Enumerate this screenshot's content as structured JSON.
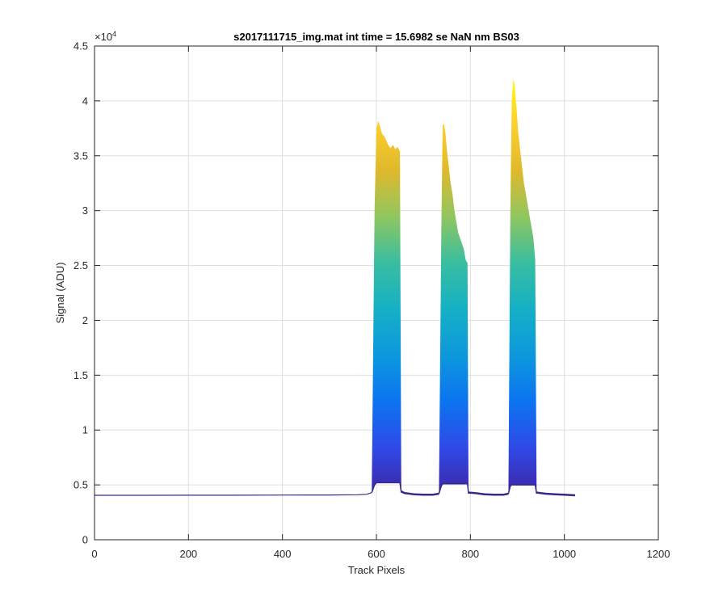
{
  "chart_data": {
    "type": "area",
    "title": "s2017111715_img.mat int time = 15.6982 se  NaN nm BS03",
    "xlabel": "Track Pixels",
    "ylabel": "Signal (ADU)",
    "xlim": [
      0,
      1200
    ],
    "ylim": [
      0,
      45000
    ],
    "x_ticks": [
      0,
      200,
      400,
      600,
      800,
      1000,
      1200
    ],
    "x_tick_labels": [
      "0",
      "200",
      "400",
      "600",
      "800",
      "1000",
      "1200"
    ],
    "y_ticks": [
      0,
      5000,
      10000,
      15000,
      20000,
      25000,
      30000,
      35000,
      40000,
      45000
    ],
    "y_tick_labels": [
      "0",
      "0.5",
      "1",
      "1.5",
      "2",
      "2.5",
      "3",
      "3.5",
      "4",
      "4.5"
    ],
    "y_exponent_label": "×10",
    "y_exponent_power": "4",
    "grid": true,
    "colormap": [
      "#3e26a8",
      "#2f4ae7",
      "#0b74f0",
      "#0d98dc",
      "#15b0c6",
      "#38bea0",
      "#90c660",
      "#dfb92c",
      "#fcce2e",
      "#f9fb15"
    ],
    "baseline": 4050,
    "peaks": [
      {
        "x": [
          590,
          596,
          600,
          604,
          608,
          612,
          616,
          620,
          625,
          630,
          635,
          640,
          645,
          650,
          653
        ],
        "top": [
          4400,
          30000,
          37500,
          38200,
          37600,
          37000,
          36800,
          36500,
          36000,
          35700,
          36000,
          35600,
          35800,
          35400,
          4400
        ],
        "floor": [
          4300,
          5000,
          5200,
          5200,
          5200,
          5200,
          5200,
          5200,
          5200,
          5200,
          5200,
          5200,
          5200,
          5200,
          4300
        ]
      },
      {
        "x": [
          733,
          738,
          741,
          744,
          747,
          750,
          754,
          758,
          762,
          766,
          770,
          774,
          778,
          782,
          786,
          790,
          794,
          796
        ],
        "top": [
          4300,
          28000,
          37800,
          37900,
          37000,
          35500,
          34000,
          32500,
          31500,
          30000,
          29000,
          28000,
          27500,
          27000,
          26500,
          25500,
          25200,
          4300
        ],
        "floor": [
          4200,
          4900,
          5100,
          5100,
          5100,
          5100,
          5100,
          5100,
          5100,
          5100,
          5100,
          5100,
          5100,
          5100,
          5100,
          5100,
          5100,
          4200
        ]
      },
      {
        "x": [
          881,
          885,
          888,
          891,
          894,
          898,
          902,
          906,
          910,
          914,
          918,
          922,
          926,
          930,
          934,
          938,
          941
        ],
        "top": [
          4300,
          30000,
          40000,
          42000,
          41500,
          39500,
          37000,
          35500,
          34000,
          32500,
          31500,
          30500,
          29500,
          28500,
          27500,
          25500,
          4300
        ],
        "floor": [
          4200,
          4900,
          5000,
          5000,
          5000,
          5000,
          5000,
          5000,
          5000,
          5000,
          5000,
          5000,
          5000,
          5000,
          5000,
          5000,
          4200
        ]
      }
    ],
    "shoulders": [
      {
        "x": [
          653,
          660,
          680,
          700,
          720,
          733
        ],
        "y": [
          4400,
          4250,
          4150,
          4100,
          4100,
          4200
        ]
      },
      {
        "x": [
          796,
          810,
          830,
          850,
          870,
          881
        ],
        "y": [
          4300,
          4250,
          4150,
          4100,
          4100,
          4200
        ]
      },
      {
        "x": [
          941,
          960,
          980,
          1000,
          1023
        ],
        "y": [
          4300,
          4200,
          4150,
          4100,
          4050
        ]
      }
    ],
    "line_x": [
      0,
      100,
      200,
      300,
      400,
      500,
      560,
      580,
      590
    ],
    "line_y": [
      4050,
      4050,
      4060,
      4060,
      4070,
      4080,
      4100,
      4150,
      4300
    ]
  }
}
